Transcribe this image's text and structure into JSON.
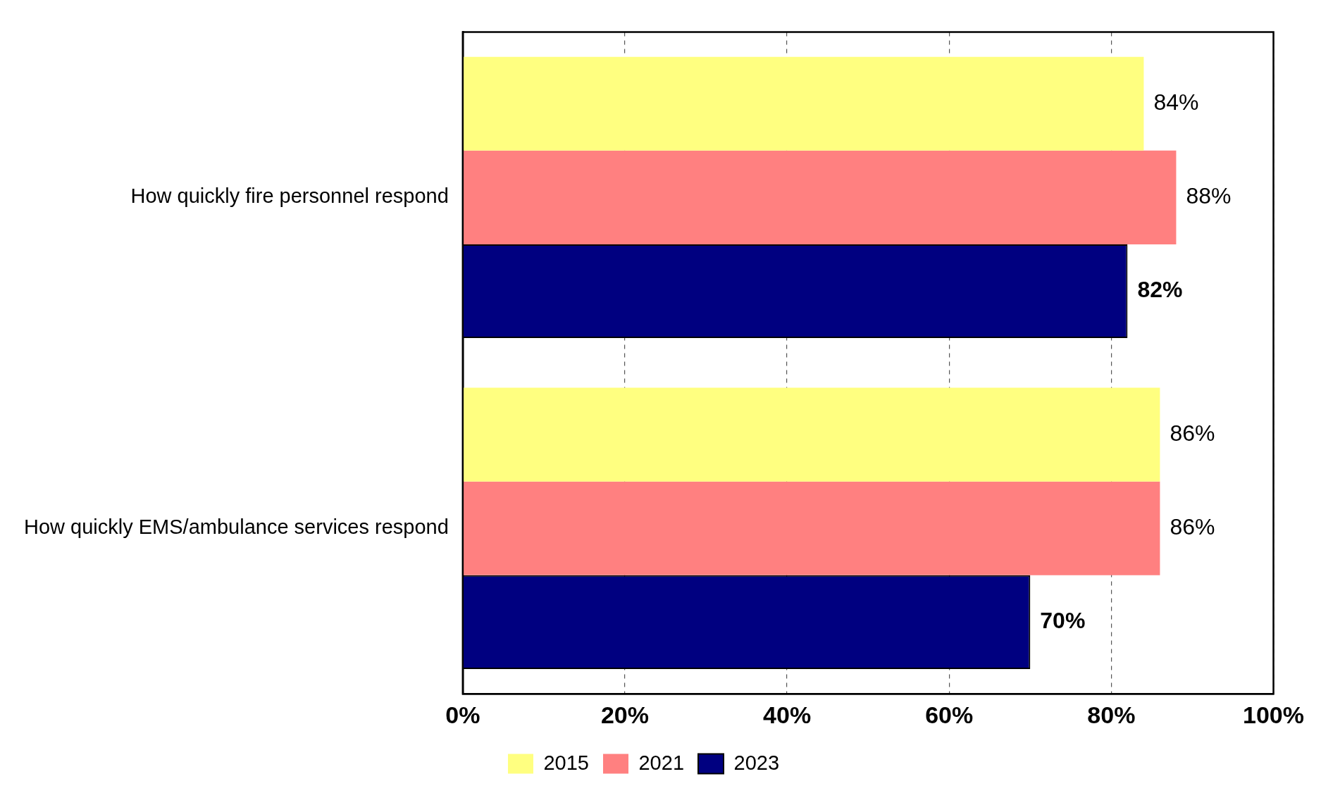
{
  "chart_data": {
    "type": "bar",
    "orientation": "horizontal",
    "categories": [
      "How quickly fire personnel respond",
      "How quickly EMS/ambulance services respond"
    ],
    "series": [
      {
        "name": "2015",
        "color": "#ffff80",
        "values": [
          84,
          86
        ],
        "value_labels": [
          "84%",
          "86%"
        ]
      },
      {
        "name": "2021",
        "color": "#ff8080",
        "values": [
          88,
          86
        ],
        "value_labels": [
          "88%",
          "86%"
        ]
      },
      {
        "name": "2023",
        "color": "#000080",
        "values": [
          82,
          70
        ],
        "value_labels": [
          "82%",
          "70%"
        ]
      }
    ],
    "xlim": [
      0,
      100
    ],
    "xticks": [
      {
        "value": 0,
        "label": "0%"
      },
      {
        "value": 20,
        "label": "20%"
      },
      {
        "value": 40,
        "label": "40%"
      },
      {
        "value": 60,
        "label": "60%"
      },
      {
        "value": 80,
        "label": "80%"
      },
      {
        "value": 100,
        "label": "100%"
      }
    ],
    "grid": "x",
    "legend": "bottom"
  }
}
